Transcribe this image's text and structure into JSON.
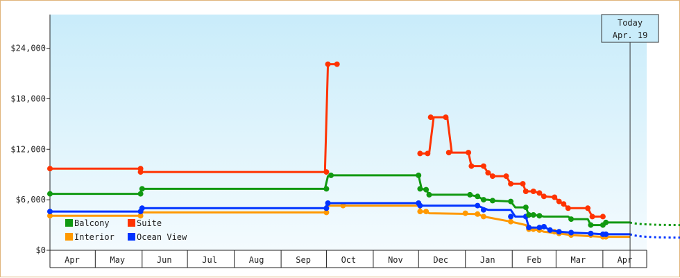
{
  "chart_data": {
    "type": "line",
    "title": "",
    "xlabel": "",
    "ylabel": "",
    "x_axis": "date",
    "xlim": [
      "2023-04-01",
      "2024-04-30"
    ],
    "ylim": [
      0,
      28000
    ],
    "y_ticks": [
      0,
      6000,
      12000,
      18000,
      24000
    ],
    "y_tick_labels": [
      "$0",
      "$6,000",
      "$12,000",
      "$18,000",
      "$24,000"
    ],
    "month_labels": [
      "Apr",
      "May",
      "Jun",
      "Jul",
      "Aug",
      "Sep",
      "Oct",
      "Nov",
      "Dec",
      "Jan",
      "Feb",
      "Mar",
      "Apr"
    ],
    "grid": false,
    "legend_position": "bottom-left",
    "today": {
      "line1": "Today",
      "line2": "Apr. 19",
      "date": "2024-04-19"
    },
    "series": [
      {
        "name": "Suite",
        "color": "#ff3300",
        "step_points": [
          [
            "2023-04-01",
            9700
          ],
          [
            "2023-05-31",
            9700
          ],
          [
            "2023-06-01",
            9300
          ],
          [
            "2023-09-30",
            9300
          ],
          [
            "2023-10-02",
            22100
          ],
          [
            "2023-10-08",
            22100
          ]
        ],
        "step_points_2": [
          [
            "2023-12-02",
            11500
          ],
          [
            "2023-12-08",
            11500
          ],
          [
            "2023-12-11",
            15800
          ],
          [
            "2023-12-20",
            15800
          ],
          [
            "2023-12-23",
            11600
          ],
          [
            "2024-01-03",
            11600
          ],
          [
            "2024-01-05",
            10000
          ],
          [
            "2024-01-13",
            10000
          ],
          [
            "2024-01-16",
            9200
          ],
          [
            "2024-01-19",
            8800
          ],
          [
            "2024-01-28",
            8800
          ],
          [
            "2024-01-31",
            7900
          ],
          [
            "2024-02-08",
            7900
          ],
          [
            "2024-02-10",
            7000
          ],
          [
            "2024-02-15",
            7000
          ],
          [
            "2024-02-19",
            6800
          ],
          [
            "2024-02-22",
            6400
          ],
          [
            "2024-02-29",
            6300
          ],
          [
            "2024-03-03",
            5800
          ],
          [
            "2024-03-06",
            5500
          ],
          [
            "2024-03-09",
            5000
          ],
          [
            "2024-03-22",
            5000
          ],
          [
            "2024-03-25",
            4000
          ],
          [
            "2024-04-01",
            4000
          ]
        ],
        "markers": [
          [
            "2023-04-01",
            9700
          ],
          [
            "2023-05-31",
            9700
          ],
          [
            "2023-05-31",
            9300
          ],
          [
            "2023-10-01",
            9300
          ],
          [
            "2023-10-02",
            22100
          ],
          [
            "2023-10-08",
            22100
          ],
          [
            "2023-12-02",
            11500
          ],
          [
            "2023-12-07",
            11500
          ],
          [
            "2023-12-09",
            15800
          ],
          [
            "2023-12-19",
            15800
          ],
          [
            "2023-12-21",
            11600
          ],
          [
            "2024-01-03",
            11600
          ],
          [
            "2024-01-05",
            10000
          ],
          [
            "2024-01-13",
            10000
          ],
          [
            "2024-01-16",
            9200
          ],
          [
            "2024-01-19",
            8800
          ],
          [
            "2024-01-28",
            8800
          ],
          [
            "2024-01-31",
            7900
          ],
          [
            "2024-02-08",
            7900
          ],
          [
            "2024-02-10",
            7000
          ],
          [
            "2024-02-15",
            7000
          ],
          [
            "2024-02-19",
            6800
          ],
          [
            "2024-02-22",
            6400
          ],
          [
            "2024-02-29",
            6300
          ],
          [
            "2024-03-03",
            5800
          ],
          [
            "2024-03-06",
            5500
          ],
          [
            "2024-03-09",
            5000
          ],
          [
            "2024-03-22",
            5000
          ],
          [
            "2024-03-25",
            4000
          ],
          [
            "2024-04-01",
            4000
          ]
        ]
      },
      {
        "name": "Balcony",
        "color": "#119911",
        "step_points": [
          [
            "2023-04-01",
            6700
          ],
          [
            "2023-05-31",
            6700
          ],
          [
            "2023-06-01",
            7300
          ],
          [
            "2023-09-30",
            7300
          ],
          [
            "2023-10-02",
            8800
          ],
          [
            "2023-10-05",
            8900
          ],
          [
            "2023-12-01",
            8900
          ],
          [
            "2023-12-03",
            7300
          ],
          [
            "2023-12-06",
            7200
          ],
          [
            "2023-12-08",
            6600
          ],
          [
            "2024-01-03",
            6600
          ],
          [
            "2024-01-09",
            6400
          ],
          [
            "2024-01-13",
            6000
          ],
          [
            "2024-01-16",
            6000
          ],
          [
            "2024-01-19",
            5900
          ],
          [
            "2024-01-31",
            5800
          ],
          [
            "2024-02-03",
            5100
          ],
          [
            "2024-02-10",
            5100
          ],
          [
            "2024-02-12",
            4200
          ],
          [
            "2024-02-15",
            4200
          ],
          [
            "2024-02-19",
            4100
          ],
          [
            "2024-02-22",
            4000
          ],
          [
            "2024-03-09",
            4000
          ],
          [
            "2024-03-11",
            3700
          ],
          [
            "2024-03-22",
            3700
          ],
          [
            "2024-03-24",
            3000
          ],
          [
            "2024-04-01",
            3000
          ],
          [
            "2024-04-03",
            3300
          ],
          [
            "2024-04-19",
            3300
          ]
        ],
        "markers": [
          [
            "2023-04-01",
            6700
          ],
          [
            "2023-05-31",
            6700
          ],
          [
            "2023-06-01",
            7300
          ],
          [
            "2023-10-01",
            7300
          ],
          [
            "2023-10-04",
            8900
          ],
          [
            "2023-12-01",
            8900
          ],
          [
            "2023-12-02",
            7300
          ],
          [
            "2023-12-06",
            7200
          ],
          [
            "2023-12-08",
            6600
          ],
          [
            "2024-01-04",
            6600
          ],
          [
            "2024-01-09",
            6400
          ],
          [
            "2024-01-13",
            6000
          ],
          [
            "2024-01-19",
            5900
          ],
          [
            "2024-01-31",
            5800
          ],
          [
            "2024-02-10",
            5100
          ],
          [
            "2024-02-12",
            4200
          ],
          [
            "2024-02-15",
            4200
          ],
          [
            "2024-02-19",
            4100
          ],
          [
            "2024-03-11",
            3700
          ],
          [
            "2024-03-24",
            3000
          ],
          [
            "2024-04-01",
            3000
          ],
          [
            "2024-04-03",
            3300
          ]
        ]
      },
      {
        "name": "Interior",
        "color": "#ff9900",
        "step_points": [
          [
            "2023-04-01",
            4100
          ],
          [
            "2023-05-31",
            4100
          ],
          [
            "2023-06-01",
            4500
          ],
          [
            "2023-09-30",
            4500
          ],
          [
            "2023-10-02",
            5300
          ],
          [
            "2023-12-01",
            5300
          ],
          [
            "2023-12-03",
            4600
          ],
          [
            "2023-12-06",
            4600
          ],
          [
            "2023-12-08",
            4400
          ],
          [
            "2024-01-09",
            4300
          ],
          [
            "2024-01-13",
            4000
          ],
          [
            "2024-01-31",
            3400
          ],
          [
            "2024-02-10",
            3000
          ],
          [
            "2024-02-12",
            2500
          ],
          [
            "2024-02-19",
            2400
          ],
          [
            "2024-02-22",
            2200
          ],
          [
            "2024-03-03",
            2000
          ],
          [
            "2024-03-11",
            1800
          ],
          [
            "2024-04-01",
            1600
          ],
          [
            "2024-04-19",
            1600
          ]
        ],
        "markers": [
          [
            "2023-04-01",
            4100
          ],
          [
            "2023-05-31",
            4100
          ],
          [
            "2023-10-01",
            4500
          ],
          [
            "2023-10-12",
            5300
          ],
          [
            "2023-12-02",
            4600
          ],
          [
            "2023-12-06",
            4600
          ],
          [
            "2024-01-01",
            4400
          ],
          [
            "2024-01-09",
            4300
          ],
          [
            "2024-01-13",
            4000
          ],
          [
            "2024-01-31",
            3400
          ],
          [
            "2024-02-12",
            2500
          ],
          [
            "2024-02-15",
            2500
          ],
          [
            "2024-02-19",
            2400
          ],
          [
            "2024-02-29",
            2200
          ],
          [
            "2024-03-03",
            2000
          ],
          [
            "2024-03-11",
            1800
          ],
          [
            "2024-03-24",
            1800
          ],
          [
            "2024-04-01",
            1600
          ],
          [
            "2024-04-03",
            1600
          ]
        ]
      },
      {
        "name": "Ocean View",
        "color": "#0033ff",
        "step_points": [
          [
            "2023-04-01",
            4600
          ],
          [
            "2023-05-31",
            4600
          ],
          [
            "2023-06-01",
            5000
          ],
          [
            "2023-09-30",
            5000
          ],
          [
            "2023-10-02",
            5600
          ],
          [
            "2023-12-01",
            5600
          ],
          [
            "2023-12-03",
            5300
          ],
          [
            "2024-01-09",
            5300
          ],
          [
            "2024-01-13",
            5000
          ],
          [
            "2024-01-16",
            4800
          ],
          [
            "2024-01-31",
            4800
          ],
          [
            "2024-02-03",
            4000
          ],
          [
            "2024-02-10",
            4000
          ],
          [
            "2024-02-12",
            2700
          ],
          [
            "2024-02-19",
            2700
          ],
          [
            "2024-02-22",
            2800
          ],
          [
            "2024-02-26",
            2400
          ],
          [
            "2024-03-03",
            2200
          ],
          [
            "2024-03-11",
            2100
          ],
          [
            "2024-03-24",
            2000
          ],
          [
            "2024-04-01",
            1900
          ],
          [
            "2024-04-19",
            1900
          ]
        ],
        "markers": [
          [
            "2023-04-01",
            4600
          ],
          [
            "2023-05-31",
            4600
          ],
          [
            "2023-06-01",
            5000
          ],
          [
            "2023-10-01",
            5000
          ],
          [
            "2023-10-02",
            5600
          ],
          [
            "2023-12-01",
            5600
          ],
          [
            "2023-12-02",
            5300
          ],
          [
            "2024-01-09",
            5300
          ],
          [
            "2024-01-13",
            4800
          ],
          [
            "2024-01-31",
            4000
          ],
          [
            "2024-02-10",
            4000
          ],
          [
            "2024-02-12",
            2700
          ],
          [
            "2024-02-19",
            2700
          ],
          [
            "2024-02-22",
            2800
          ],
          [
            "2024-02-26",
            2400
          ],
          [
            "2024-03-03",
            2200
          ],
          [
            "2024-03-11",
            2100
          ],
          [
            "2024-03-24",
            2000
          ],
          [
            "2024-04-01",
            1900
          ],
          [
            "2024-04-03",
            1900
          ]
        ]
      }
    ],
    "forecast": [
      {
        "series": "Balcony",
        "color": "#119911",
        "from": [
          "2024-04-19",
          3300
        ],
        "to": [
          "2024-04-30",
          3000
        ]
      },
      {
        "series": "Ocean View",
        "color": "#0033ff",
        "from": [
          "2024-04-19",
          1900
        ],
        "to": [
          "2024-04-30",
          1500
        ]
      }
    ]
  }
}
